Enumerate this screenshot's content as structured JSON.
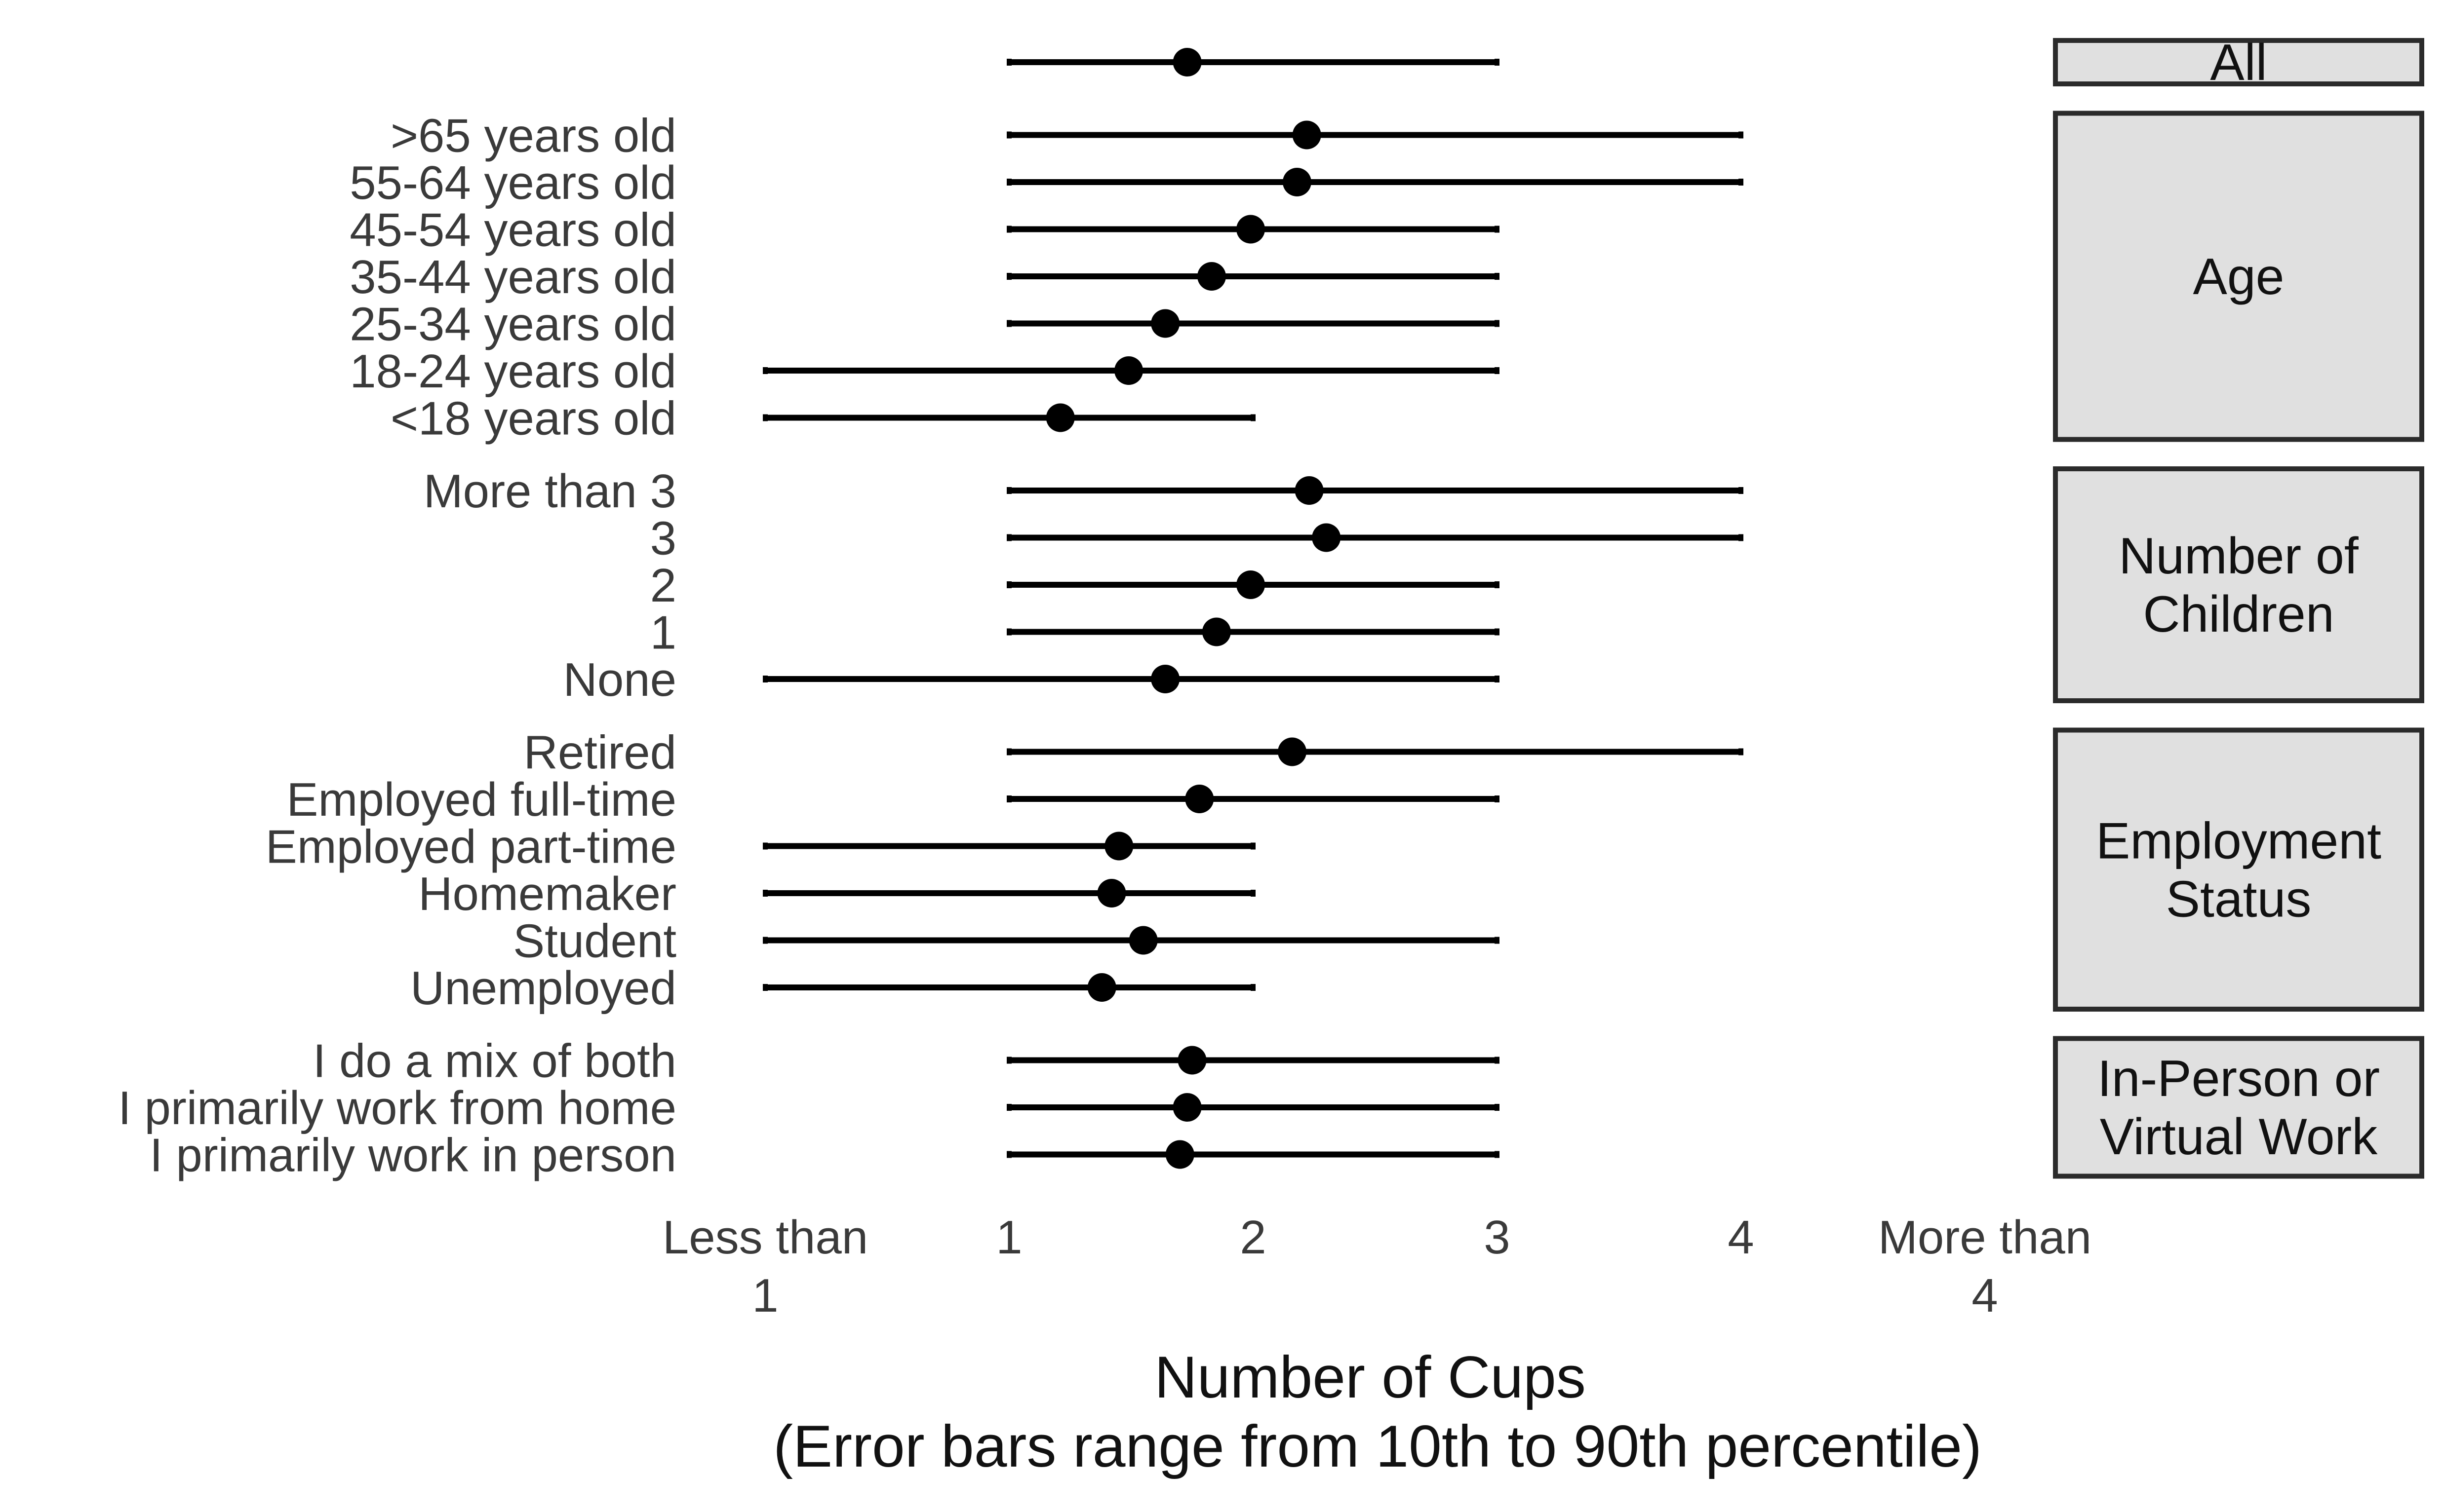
{
  "chart_data": {
    "type": "errorbar",
    "xlabel": "Number of Cups",
    "xlabel_note": "(Error bars range from 10th to 90th percentile)",
    "x_ticks": [
      {
        "value": 0,
        "label": [
          "Less than",
          "1"
        ]
      },
      {
        "value": 1,
        "label": [
          "1"
        ]
      },
      {
        "value": 2,
        "label": [
          "2"
        ]
      },
      {
        "value": 3,
        "label": [
          "3"
        ]
      },
      {
        "value": 4,
        "label": [
          "4"
        ]
      },
      {
        "value": 5,
        "label": [
          "More than",
          "4"
        ]
      }
    ],
    "xlim": [
      0,
      5
    ],
    "grid": false,
    "colors": {
      "point": "#000000",
      "bar": "#000000",
      "strip_fill": "#e0e0e0",
      "strip_border": "#2b2b2b",
      "text": "#3a3a3a"
    },
    "facets": [
      {
        "strip": [
          "All"
        ],
        "rows": [
          {
            "label": "",
            "mean": 1.73,
            "low": 1,
            "high": 3
          }
        ]
      },
      {
        "strip": [
          "Age"
        ],
        "rows": [
          {
            "label": ">65 years old",
            "mean": 2.22,
            "low": 1,
            "high": 4
          },
          {
            "label": "55-64 years old",
            "mean": 2.18,
            "low": 1,
            "high": 4
          },
          {
            "label": "45-54 years old",
            "mean": 1.99,
            "low": 1,
            "high": 3
          },
          {
            "label": "35-44 years old",
            "mean": 1.83,
            "low": 1,
            "high": 3
          },
          {
            "label": "25-34 years old",
            "mean": 1.64,
            "low": 1,
            "high": 3
          },
          {
            "label": "18-24 years old",
            "mean": 1.49,
            "low": 0,
            "high": 3
          },
          {
            "label": "<18 years old",
            "mean": 1.21,
            "low": 0,
            "high": 2
          }
        ]
      },
      {
        "strip": [
          "Number of",
          "Children"
        ],
        "rows": [
          {
            "label": "More than 3",
            "mean": 2.23,
            "low": 1,
            "high": 4
          },
          {
            "label": "3",
            "mean": 2.3,
            "low": 1,
            "high": 4
          },
          {
            "label": "2",
            "mean": 1.99,
            "low": 1,
            "high": 3
          },
          {
            "label": "1",
            "mean": 1.85,
            "low": 1,
            "high": 3
          },
          {
            "label": "None",
            "mean": 1.64,
            "low": 0,
            "high": 3
          }
        ]
      },
      {
        "strip": [
          "Employment",
          "Status"
        ],
        "rows": [
          {
            "label": "Retired",
            "mean": 2.16,
            "low": 1,
            "high": 4
          },
          {
            "label": "Employed full-time",
            "mean": 1.78,
            "low": 1,
            "high": 3
          },
          {
            "label": "Employed part-time",
            "mean": 1.45,
            "low": 0,
            "high": 2
          },
          {
            "label": "Homemaker",
            "mean": 1.42,
            "low": 0,
            "high": 2
          },
          {
            "label": "Student",
            "mean": 1.55,
            "low": 0,
            "high": 3
          },
          {
            "label": "Unemployed",
            "mean": 1.38,
            "low": 0,
            "high": 2
          }
        ]
      },
      {
        "strip": [
          "In-Person or",
          "Virtual Work"
        ],
        "rows": [
          {
            "label": "I do a mix of both",
            "mean": 1.75,
            "low": 1,
            "high": 3
          },
          {
            "label": "I primarily work from home",
            "mean": 1.73,
            "low": 1,
            "high": 3
          },
          {
            "label": "I primarily work in person",
            "mean": 1.7,
            "low": 1,
            "high": 3
          }
        ]
      }
    ]
  }
}
